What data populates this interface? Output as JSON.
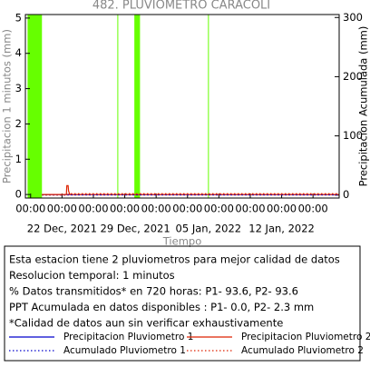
{
  "chart_data": {
    "type": "line",
    "title": "482. PLUVIOMETRO CARACOLI",
    "xlabel": "Tiempo",
    "ylabel": "Precipitacion 1 minutos (mm)",
    "y2label": "Precipitacion Acumulada (mm)",
    "xlim": [
      "2021-12-18 12:00",
      "2022-01-17 12:00"
    ],
    "ylim": [
      -0.1,
      5.1
    ],
    "yticks": [
      0,
      1,
      2,
      3,
      4,
      5
    ],
    "y2lim": [
      -5,
      305
    ],
    "y2ticks": [
      0,
      100,
      200,
      300
    ],
    "xticks": [
      {
        "value": "2021-12-19 00:00",
        "label": "00:00"
      },
      {
        "value": "2021-12-22 00:00",
        "label": "00:00"
      },
      {
        "value": "2021-12-25 00:00",
        "label": "00:00"
      },
      {
        "value": "2021-12-28 00:00",
        "label": "00:00"
      },
      {
        "value": "2021-12-31 00:00",
        "label": "00:00"
      },
      {
        "value": "2022-01-03 00:00",
        "label": "00:00"
      },
      {
        "value": "2022-01-06 00:00",
        "label": "00:00"
      },
      {
        "value": "2022-01-09 00:00",
        "label": "00:00"
      },
      {
        "value": "2022-01-12 00:00",
        "label": "00:00"
      },
      {
        "value": "2022-01-15 00:00",
        "label": "00:00"
      }
    ],
    "date_labels": [
      {
        "value": "2021-12-22 00:00",
        "label": "22 Dec, 2021"
      },
      {
        "value": "2021-12-29 00:00",
        "label": "29 Dec, 2021"
      },
      {
        "value": "2022-01-05 00:00",
        "label": "05 Jan, 2022"
      },
      {
        "value": "2022-01-12 00:00",
        "label": "12 Jan, 2022"
      }
    ],
    "missing_data_color": "#66ff00",
    "missing_data": [
      {
        "start": "2021-12-18 17:00",
        "end": "2021-12-20 02:00"
      },
      {
        "start": "2021-12-27 07:00",
        "end": "2021-12-27 08:00"
      },
      {
        "start": "2021-12-28 22:00",
        "end": "2021-12-29 11:00"
      },
      {
        "start": "2022-01-04 23:00",
        "end": "2022-01-05 00:00"
      }
    ],
    "series": [
      {
        "name": "Precipitacion Pluviometro 1",
        "color": "#0000cc",
        "style": "solid",
        "axis": "y",
        "x": [
          "2021-12-20 02:00",
          "2022-01-17 12:00"
        ],
        "values": [
          0,
          0
        ]
      },
      {
        "name": "Precipitacion Pluviometro 2",
        "color": "#dd2200",
        "style": "solid",
        "axis": "y",
        "x": [
          "2021-12-20 02:00",
          "2021-12-22 10:00",
          "2021-12-22 11:00",
          "2021-12-22 14:00",
          "2021-12-22 15:00",
          "2021-12-22 18:00",
          "2022-01-17 12:00"
        ],
        "values": [
          0,
          0,
          0.25,
          0.25,
          0.1,
          0,
          0
        ]
      },
      {
        "name": "Acumulado Pluviometro 1",
        "color": "#0000cc",
        "style": "dotted",
        "axis": "y2",
        "x": [
          "2021-12-20 02:00",
          "2022-01-17 12:00"
        ],
        "values": [
          0,
          0
        ]
      },
      {
        "name": "Acumulado Pluviometro 2",
        "color": "#dd2200",
        "style": "dotted",
        "axis": "y2",
        "x": [
          "2021-12-20 02:00",
          "2021-12-22 10:00",
          "2021-12-22 18:00",
          "2022-01-17 12:00"
        ],
        "values": [
          0,
          0,
          2.3,
          2.3
        ]
      }
    ],
    "info_lines": [
      "Esta estacion tiene 2 pluviometros para mejor calidad de datos",
      "Resolucion temporal: 1 minutos",
      "% Datos transmitidos* en 720 horas: P1- 93.6, P2- 93.6",
      "PPT Acumulada en datos disponibles : P1-  0.0, P2-  2.3 mm",
      "*Calidad de datos aun sin verificar exhaustivamente"
    ]
  }
}
